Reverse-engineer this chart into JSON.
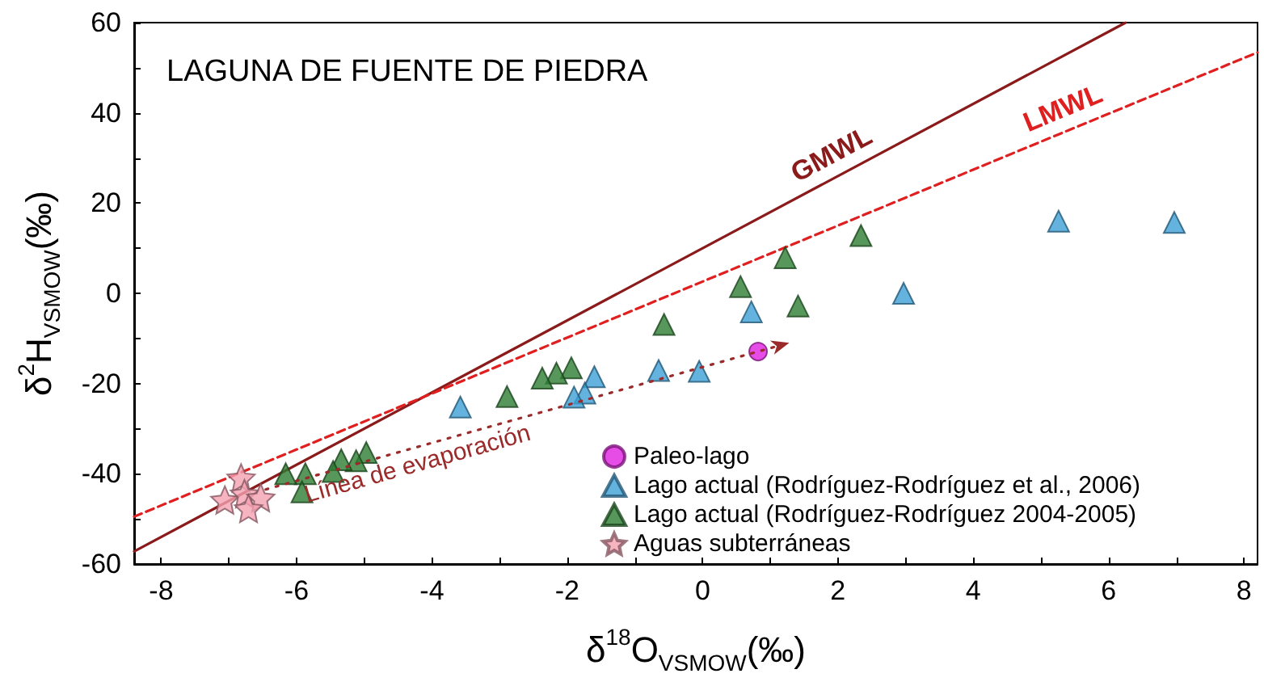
{
  "chart_data": {
    "type": "scatter",
    "title": "LAGUNA DE FUENTE DE PIEDRA",
    "xlabel": "δ$^{18}$O$_{VSMOW}$(‰)",
    "ylabel": "δ$^{2}$H$_{VSMOW}$(‰)",
    "xlim": [
      -8.4,
      8.2
    ],
    "xticks": [
      -8,
      {
        "value": -7,
        "label": null
      },
      -6,
      {
        "value": -5,
        "label": null
      },
      -4,
      {
        "value": -3,
        "label": null
      },
      -2,
      {
        "value": -1,
        "label": null
      },
      0,
      {
        "value": 1,
        "label": null
      },
      2,
      {
        "value": 3,
        "label": null
      },
      4,
      {
        "value": 5,
        "label": null
      },
      6,
      {
        "value": 7,
        "label": null
      },
      8
    ],
    "ylim": [
      -60,
      60
    ],
    "yticks": [
      -60,
      {
        "value": -50,
        "label": null
      },
      -40,
      {
        "value": -30,
        "label": null
      },
      -20,
      {
        "value": -10,
        "label": null
      },
      0,
      {
        "value": 10,
        "label": null
      },
      20,
      {
        "value": 30,
        "label": null
      },
      40,
      {
        "value": 50,
        "label": null
      },
      60
    ],
    "grid": false,
    "legend": "bottom",
    "annotations": [
      "Línea de evaporación"
    ],
    "series": [
      {
        "type": "line",
        "name": "GMWL",
        "color": "#8b1a1a",
        "line_style": "solid",
        "marker": "none",
        "x": [
          -8.4,
          2.0,
          6.25
        ],
        "values": [
          -57.2,
          26,
          60
        ]
      },
      {
        "type": "line",
        "name": "LMWL",
        "color": "#e02020",
        "line_style": "dashed",
        "marker": "none",
        "x": [
          -8.4,
          5.4,
          8.2
        ],
        "values": [
          -49.5,
          36.1,
          53.4
        ]
      },
      {
        "name": "Paleo-lago",
        "color": "#e020e0",
        "marker": "circle",
        "x": [
          0.82
        ],
        "values": [
          -12.9
        ]
      },
      {
        "name": "Lago actual (Rodríguez-Rodríguez et al., 2006)",
        "color": "#3d9fd6",
        "marker": "triangle",
        "x": [
          5.26,
          6.97,
          2.97,
          0.72,
          -0.65,
          -0.05,
          -1.6,
          -1.74,
          -1.9,
          -3.58
        ],
        "values": [
          16.0,
          15.7,
          0,
          -4.1,
          -17.1,
          -17.3,
          -18.5,
          -22.1,
          -23,
          -25.2
        ]
      },
      {
        "name": "Lago actual (Rodríguez-Rodríguez 2004-2005)",
        "color": "#2e7d32",
        "marker": "triangle",
        "x": [
          2.34,
          1.22,
          0.56,
          1.41,
          -0.57,
          -1.94,
          -2.16,
          -2.37,
          -2.89,
          -4.97,
          -5.12,
          -5.34,
          -5.46,
          -5.87,
          -6.16,
          -5.92
        ],
        "values": [
          12.8,
          7.9,
          1.5,
          -2.8,
          -6.9,
          -16.5,
          -17.7,
          -18.8,
          -22.9,
          -35.3,
          -37.1,
          -36.9,
          -39.5,
          -40,
          -40,
          -44
        ]
      },
      {
        "name": "Aguas subterráneas",
        "color": "#f4a0b0",
        "marker": "star",
        "x": [
          -6.82,
          -7.06,
          -6.77,
          -6.53,
          -6.71
        ],
        "values": [
          -40.9,
          -45.8,
          -44.4,
          -45.3,
          -47.7
        ]
      }
    ]
  }
}
